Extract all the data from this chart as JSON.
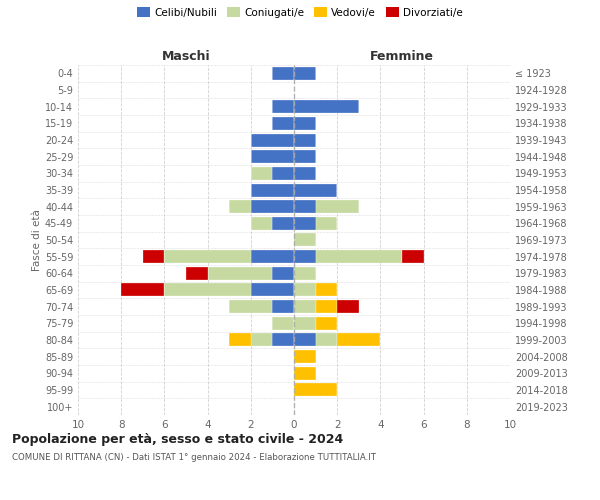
{
  "age_groups": [
    "0-4",
    "5-9",
    "10-14",
    "15-19",
    "20-24",
    "25-29",
    "30-34",
    "35-39",
    "40-44",
    "45-49",
    "50-54",
    "55-59",
    "60-64",
    "65-69",
    "70-74",
    "75-79",
    "80-84",
    "85-89",
    "90-94",
    "95-99",
    "100+"
  ],
  "birth_years": [
    "2019-2023",
    "2014-2018",
    "2009-2013",
    "2004-2008",
    "1999-2003",
    "1994-1998",
    "1989-1993",
    "1984-1988",
    "1979-1983",
    "1974-1978",
    "1969-1973",
    "1964-1968",
    "1959-1963",
    "1954-1958",
    "1949-1953",
    "1944-1948",
    "1939-1943",
    "1934-1938",
    "1929-1933",
    "1924-1928",
    "≤ 1923"
  ],
  "males": {
    "celibi": [
      1,
      0,
      1,
      1,
      2,
      2,
      1,
      2,
      2,
      1,
      0,
      2,
      1,
      2,
      1,
      0,
      1,
      0,
      0,
      0,
      0
    ],
    "coniugati": [
      0,
      0,
      0,
      0,
      0,
      0,
      1,
      0,
      1,
      1,
      0,
      4,
      3,
      4,
      2,
      1,
      1,
      0,
      0,
      0,
      0
    ],
    "vedovi": [
      0,
      0,
      0,
      0,
      0,
      0,
      0,
      0,
      0,
      0,
      0,
      0,
      0,
      0,
      0,
      0,
      1,
      0,
      0,
      0,
      0
    ],
    "divorziati": [
      0,
      0,
      0,
      0,
      0,
      0,
      0,
      0,
      0,
      0,
      0,
      1,
      1,
      2,
      0,
      0,
      0,
      0,
      0,
      0,
      0
    ]
  },
  "females": {
    "nubili": [
      1,
      0,
      3,
      1,
      1,
      1,
      1,
      2,
      1,
      1,
      0,
      1,
      0,
      0,
      0,
      0,
      1,
      0,
      0,
      0,
      0
    ],
    "coniugate": [
      0,
      0,
      0,
      0,
      0,
      0,
      0,
      0,
      2,
      1,
      1,
      4,
      1,
      1,
      1,
      1,
      1,
      0,
      0,
      0,
      0
    ],
    "vedove": [
      0,
      0,
      0,
      0,
      0,
      0,
      0,
      0,
      0,
      0,
      0,
      0,
      0,
      1,
      1,
      1,
      2,
      1,
      1,
      2,
      0
    ],
    "divorziate": [
      0,
      0,
      0,
      0,
      0,
      0,
      0,
      0,
      0,
      0,
      0,
      1,
      0,
      0,
      1,
      0,
      0,
      0,
      0,
      0,
      0
    ]
  },
  "colors": {
    "celibi": "#4472c4",
    "coniugati": "#c5d9a0",
    "vedovi": "#ffc000",
    "divorziati": "#cc0000"
  },
  "xlim": 10,
  "title": "Popolazione per età, sesso e stato civile - 2024",
  "subtitle": "COMUNE DI RITTANA (CN) - Dati ISTAT 1° gennaio 2024 - Elaborazione TUTTITALIA.IT",
  "ylabel_left": "Fasce di età",
  "xlabel_left": "Maschi",
  "xlabel_right": "Femmine",
  "background_color": "#ffffff",
  "grid_color": "#cccccc"
}
